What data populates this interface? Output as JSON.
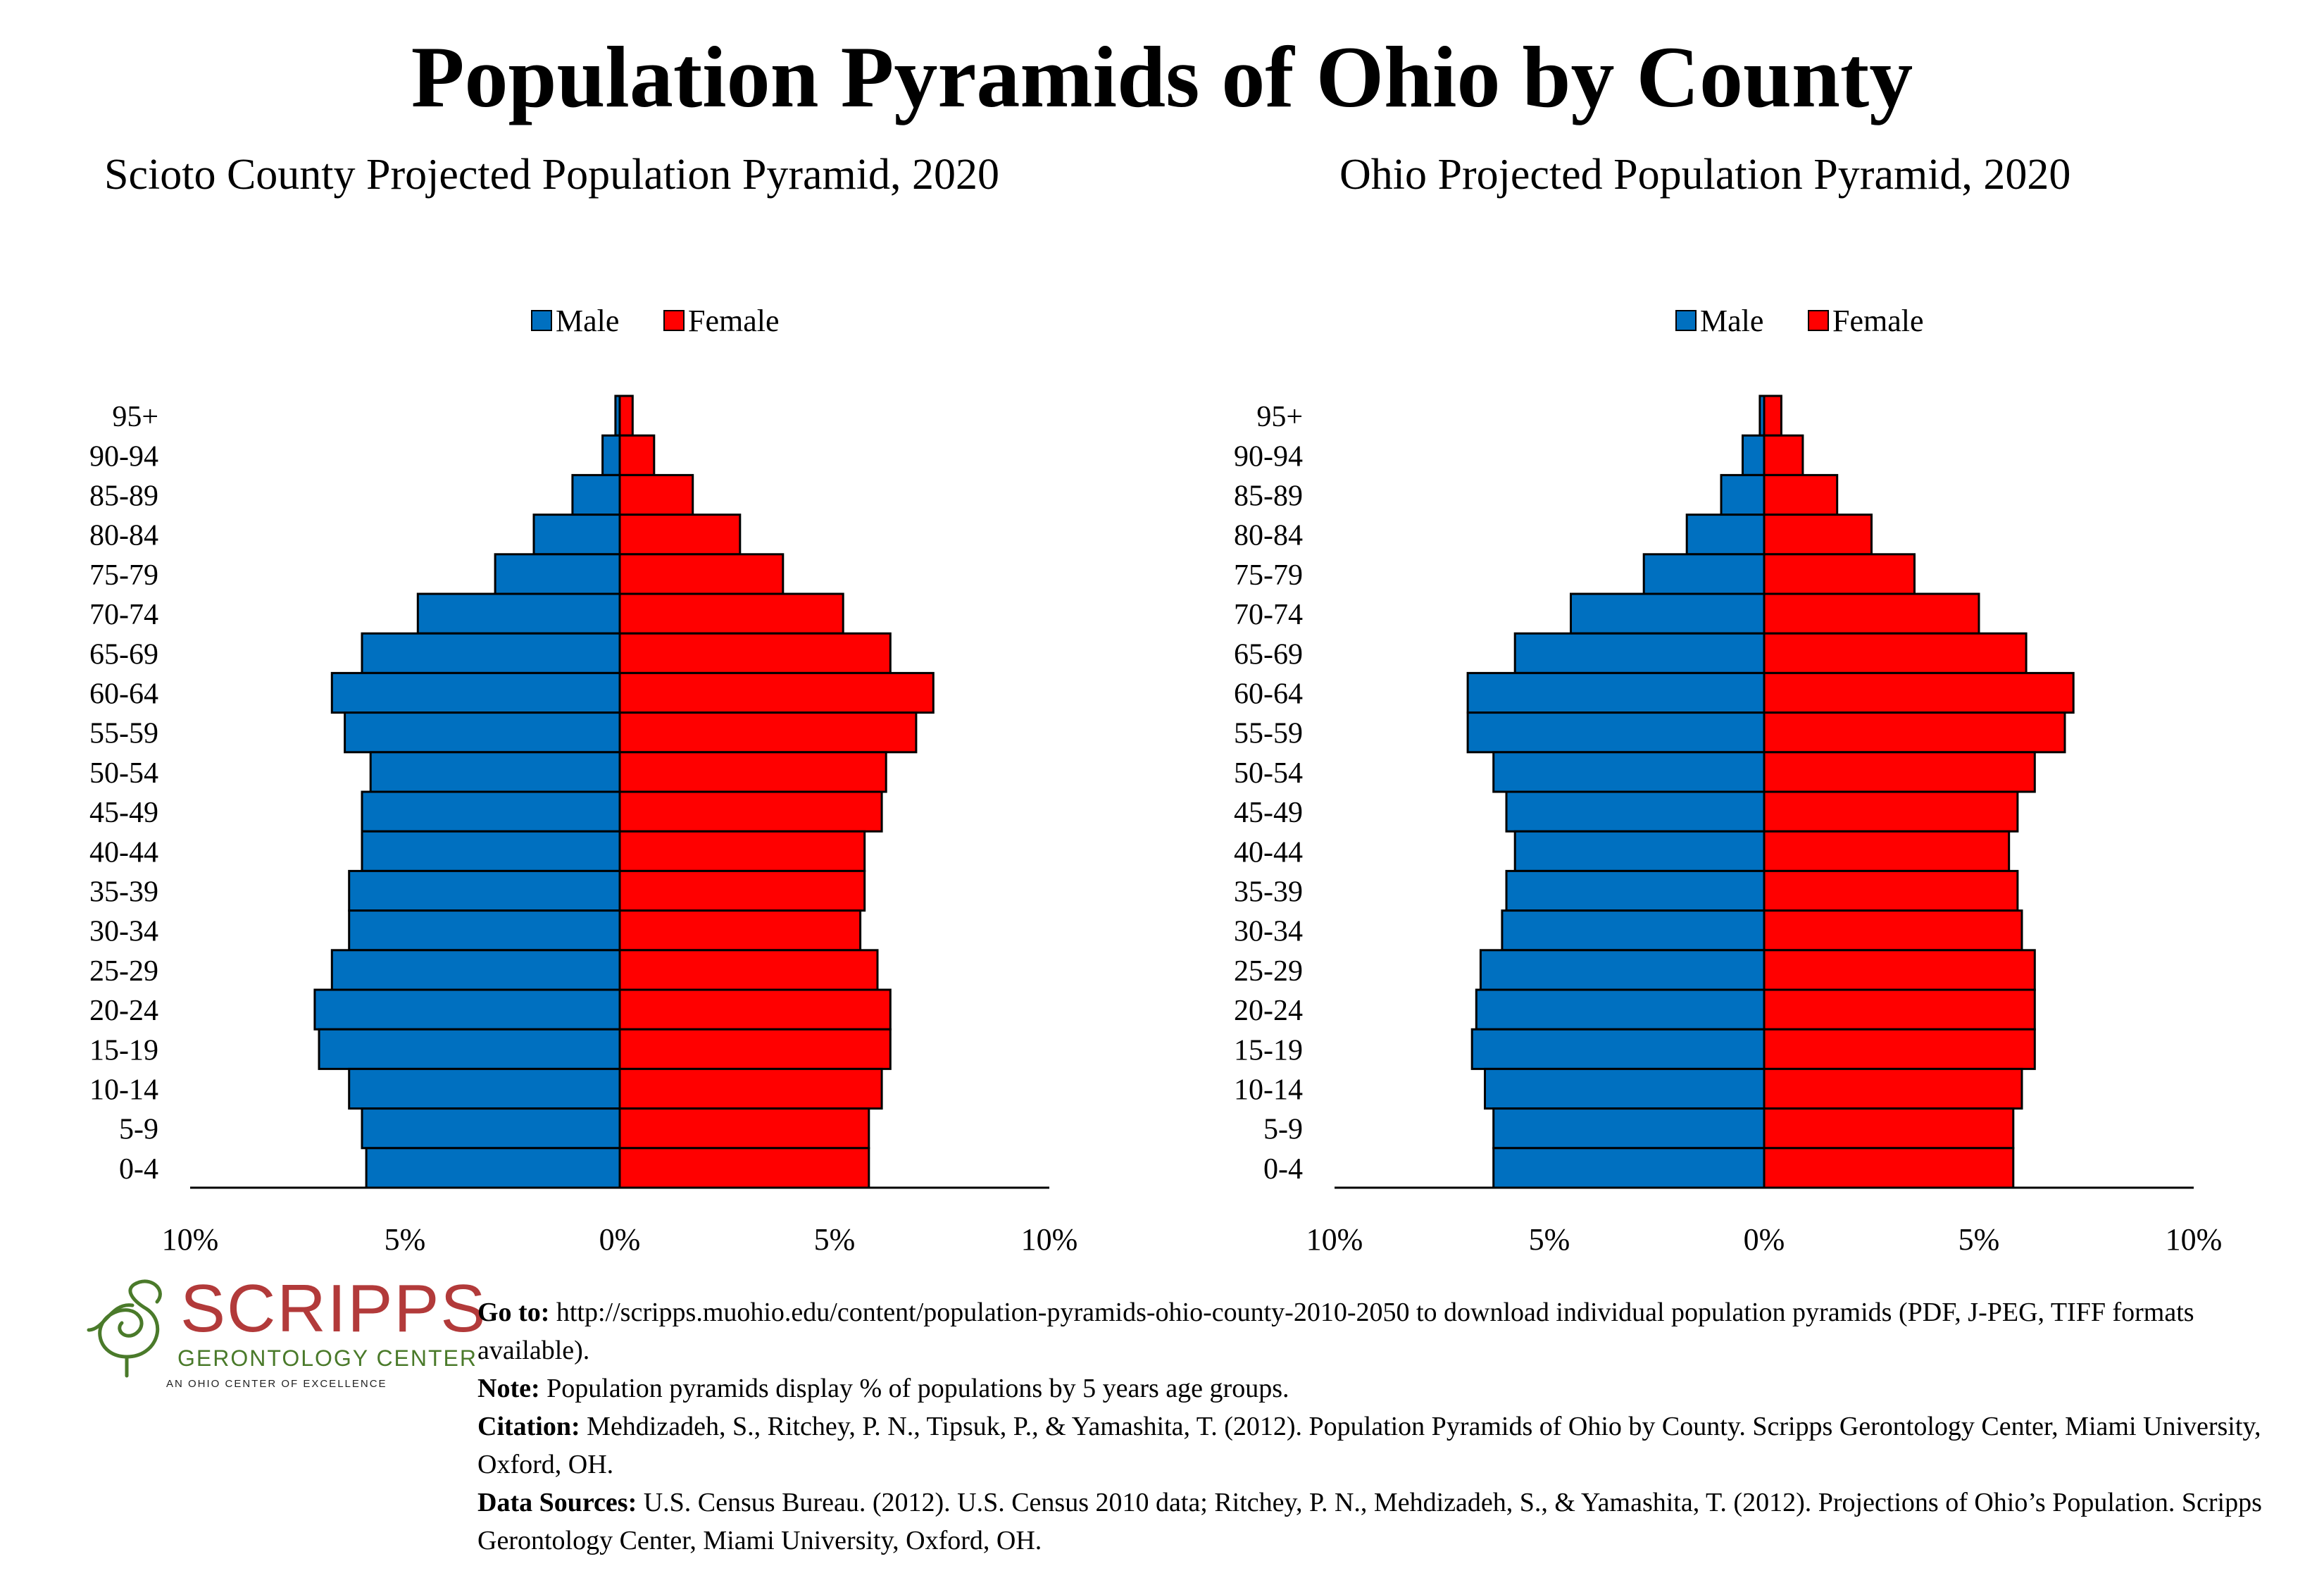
{
  "main_title": "Population Pyramids of Ohio by County",
  "colors": {
    "male": "#0070c0",
    "female": "#ff0000",
    "outline": "#000000",
    "logo_red": "#b23a3a",
    "logo_green": "#4a7a2a"
  },
  "chart_data": [
    {
      "type": "bar",
      "orientation": "horizontal-pyramid",
      "title": "Scioto County Projected Population Pyramid, 2020",
      "categories": [
        "95+",
        "90-94",
        "85-89",
        "80-84",
        "75-79",
        "70-74",
        "65-69",
        "60-64",
        "55-59",
        "50-54",
        "45-49",
        "40-44",
        "35-39",
        "30-34",
        "25-29",
        "20-24",
        "15-19",
        "10-14",
        "5-9",
        "0-4"
      ],
      "series": [
        {
          "name": "Male",
          "values": [
            0.1,
            0.4,
            1.1,
            2.0,
            2.9,
            4.7,
            6.0,
            6.7,
            6.4,
            5.8,
            6.0,
            6.0,
            6.3,
            6.3,
            6.7,
            7.1,
            7.0,
            6.3,
            6.0,
            5.9
          ]
        },
        {
          "name": "Female",
          "values": [
            0.3,
            0.8,
            1.7,
            2.8,
            3.8,
            5.2,
            6.3,
            7.3,
            6.9,
            6.2,
            6.1,
            5.7,
            5.7,
            5.6,
            6.0,
            6.3,
            6.3,
            6.1,
            5.8,
            5.8
          ]
        }
      ],
      "xlim": [
        -10,
        10
      ],
      "x_ticks": [
        "10%",
        "5%",
        "0%",
        "5%",
        "10%"
      ],
      "legend": "top-center",
      "grid": false
    },
    {
      "type": "bar",
      "orientation": "horizontal-pyramid",
      "title": "Ohio Projected Population Pyramid, 2020",
      "categories": [
        "95+",
        "90-94",
        "85-89",
        "80-84",
        "75-79",
        "70-74",
        "65-69",
        "60-64",
        "55-59",
        "50-54",
        "45-49",
        "40-44",
        "35-39",
        "30-34",
        "25-29",
        "20-24",
        "15-19",
        "10-14",
        "5-9",
        "0-4"
      ],
      "series": [
        {
          "name": "Male",
          "values": [
            0.1,
            0.5,
            1.0,
            1.8,
            2.8,
            4.5,
            5.8,
            6.9,
            6.9,
            6.3,
            6.0,
            5.8,
            6.0,
            6.1,
            6.6,
            6.7,
            6.8,
            6.5,
            6.3,
            6.3
          ]
        },
        {
          "name": "Female",
          "values": [
            0.4,
            0.9,
            1.7,
            2.5,
            3.5,
            5.0,
            6.1,
            7.2,
            7.0,
            6.3,
            5.9,
            5.7,
            5.9,
            6.0,
            6.3,
            6.3,
            6.3,
            6.0,
            5.8,
            5.8
          ]
        }
      ],
      "xlim": [
        -10,
        10
      ],
      "x_ticks": [
        "10%",
        "5%",
        "0%",
        "5%",
        "10%"
      ],
      "legend": "top-center",
      "grid": false
    }
  ],
  "logo": {
    "name": "SCRIPPS",
    "subtitle": "GERONTOLOGY CENTER",
    "tagline": "AN OHIO CENTER OF EXCELLENCE"
  },
  "notes": {
    "goto_label": "Go to:",
    "goto_text": " http://scripps.muohio.edu/content/population-pyramids-ohio-county-2010-2050 to download individual population pyramids (PDF, J-PEG, TIFF formats available).",
    "note_label": "Note:",
    "note_text": " Population pyramids display % of populations by 5 years age groups.",
    "citation_label": "Citation:",
    "citation_text": " Mehdizadeh, S., Ritchey, P. N., Tipsuk, P., & Yamashita, T. (2012). Population Pyramids of Ohio by County. Scripps Gerontology Center, Miami University, Oxford, OH.",
    "sources_label": "Data Sources:",
    "sources_text": " U.S. Census Bureau. (2012). U.S. Census 2010 data; Ritchey, P. N., Mehdizadeh, S., & Yamashita, T. (2012). Projections of Ohio’s Population. Scripps Gerontology Center, Miami University, Oxford, OH."
  }
}
